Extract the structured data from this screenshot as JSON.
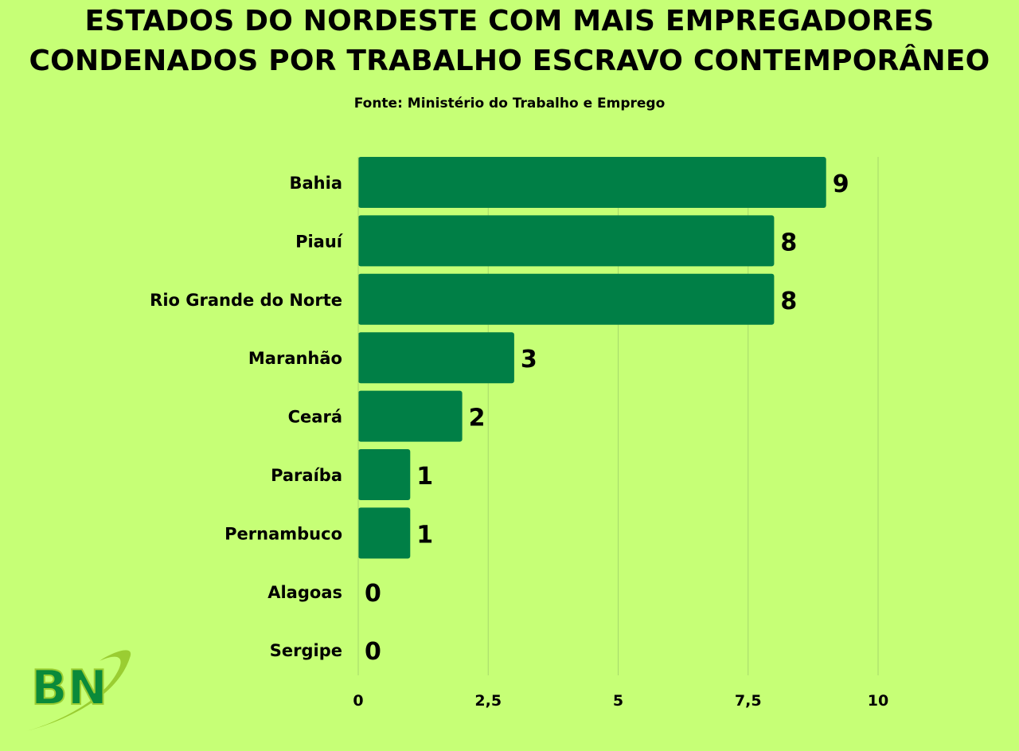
{
  "title_lines": [
    "ESTADOS DO NORDESTE COM MAIS EMPREGADORES",
    "CONDENADOS POR TRABALHO ESCRAVO CONTEMPORÂNEO"
  ],
  "subtitle": "Fonte: Ministério do Trabalho e Emprego",
  "logo": {
    "text": "BN"
  },
  "colors": {
    "background": "#c6ff76",
    "bar": "#007f46",
    "grid": "#a6d96a",
    "logo_green": "#0a8a3a",
    "logo_swoosh": "#9acd32"
  },
  "chart_data": {
    "type": "bar",
    "orientation": "horizontal",
    "categories": [
      "Bahia",
      "Piauí",
      "Rio Grande do Norte",
      "Maranhão",
      "Ceará",
      "Paraíba",
      "Pernambuco",
      "Alagoas",
      "Sergipe"
    ],
    "values": [
      9,
      8,
      8,
      3,
      2,
      1,
      1,
      0,
      0
    ],
    "value_labels": [
      "9",
      "8",
      "8",
      "3",
      "2",
      "1",
      "1",
      "0",
      "0"
    ],
    "xlim": [
      0,
      10
    ],
    "xticks": [
      0,
      2.5,
      5,
      7.5,
      10
    ],
    "xtick_labels": [
      "0",
      "2,5",
      "5",
      "7,5",
      "10"
    ],
    "grid": true,
    "legend": "none"
  }
}
